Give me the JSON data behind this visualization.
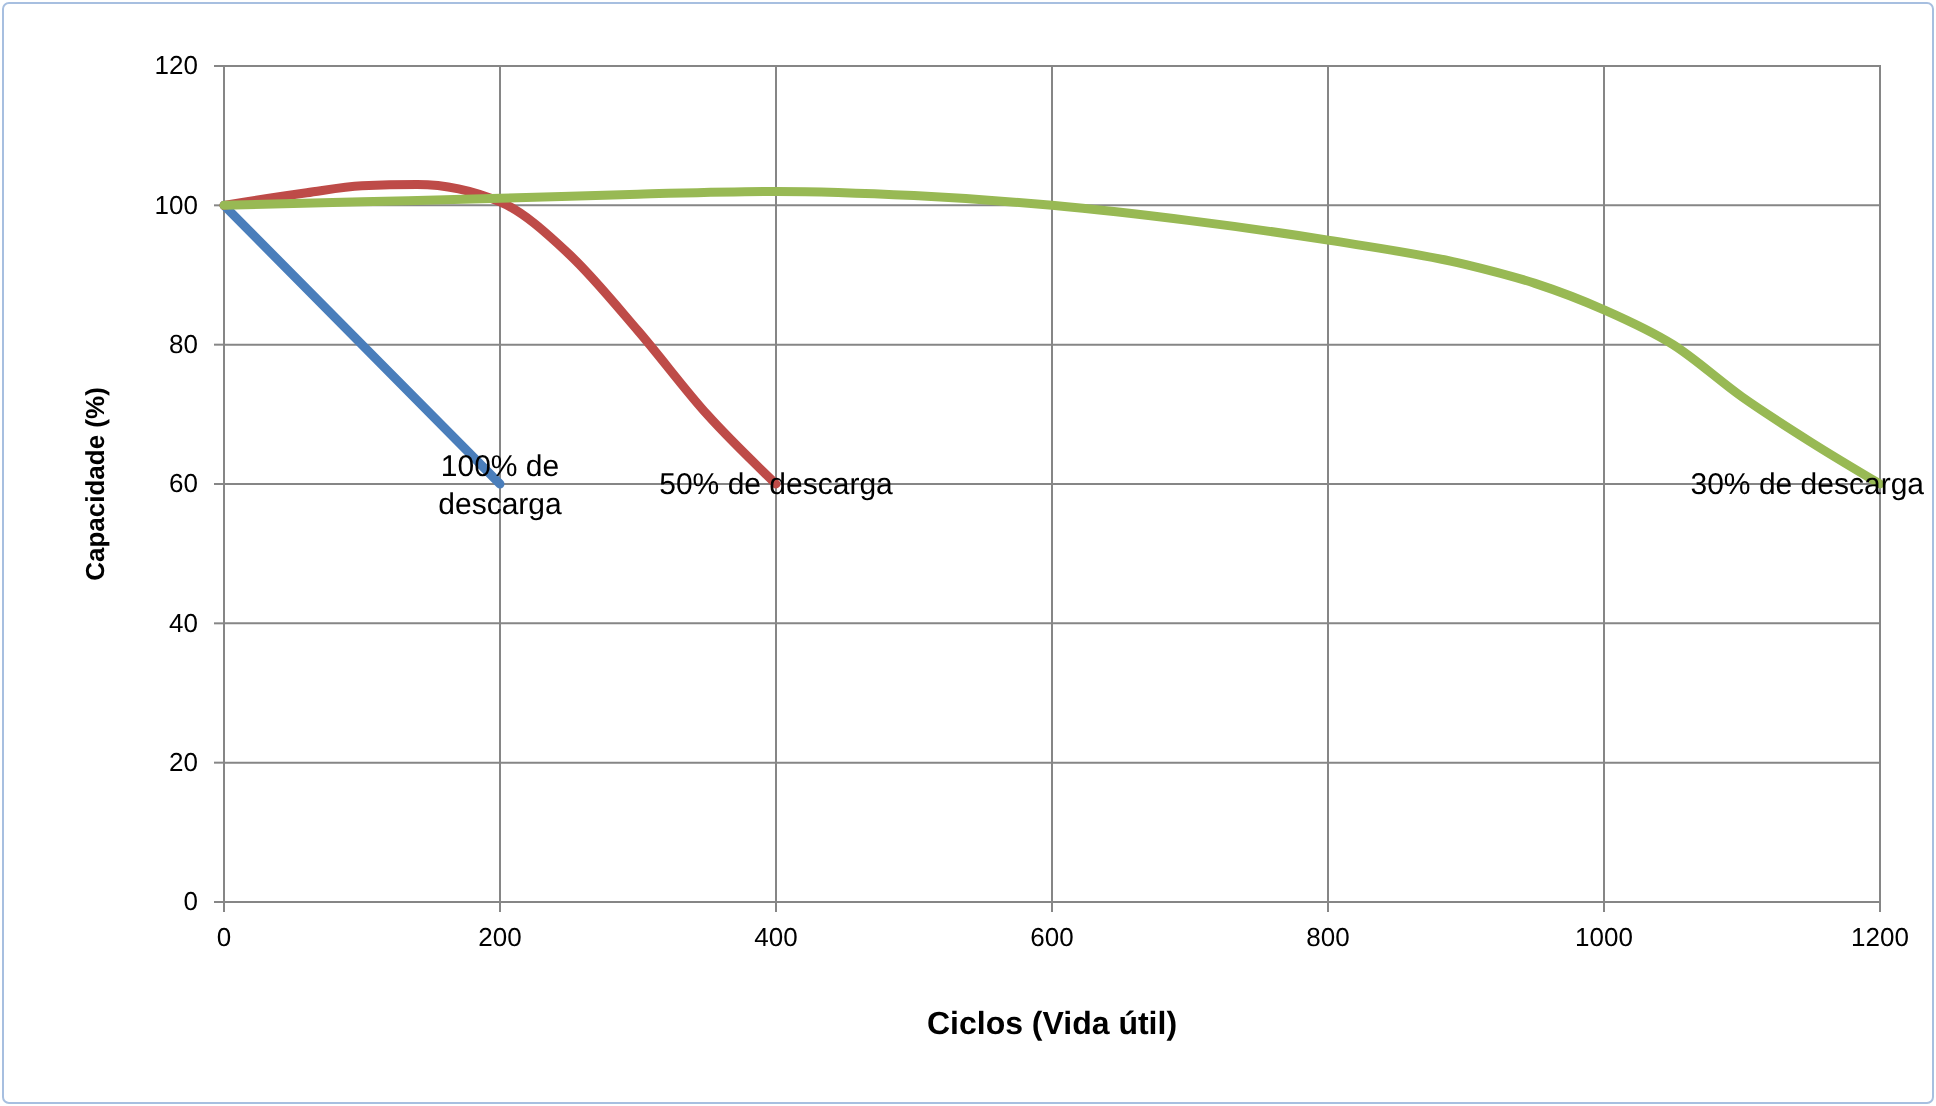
{
  "chart_data": {
    "type": "line",
    "xlabel": "Ciclos (Vida útil)",
    "ylabel": "Capacidade (%)",
    "xlim": [
      0,
      1200
    ],
    "xticks": [
      0,
      200,
      400,
      600,
      800,
      1000,
      1200
    ],
    "ylim": [
      0,
      120
    ],
    "yticks": [
      0,
      20,
      40,
      60,
      80,
      100,
      120
    ],
    "grid": true,
    "marker": "none",
    "line_style": "solid",
    "series": [
      {
        "color": "#4a7ebb",
        "x": [
          0,
          200
        ],
        "values": [
          100,
          60
        ]
      },
      {
        "color": "#be4b48",
        "x": [
          0,
          60,
          100,
          140,
          200,
          250,
          300,
          350,
          400
        ],
        "values": [
          100,
          101.8,
          102.8,
          103,
          100.5,
          93,
          82,
          70,
          60
        ]
      },
      {
        "color": "#98b954",
        "x": [
          0,
          100,
          200,
          300,
          400,
          500,
          600,
          700,
          800,
          900,
          950,
          1000,
          1050,
          1100,
          1150,
          1200
        ],
        "values": [
          100,
          100.5,
          101,
          101.6,
          102,
          101.4,
          100,
          97.8,
          95,
          91.5,
          88.8,
          85,
          80,
          72.5,
          66,
          60
        ]
      }
    ],
    "annotations": [
      {
        "text": "100% de descarga",
        "x": 200,
        "y": 60
      },
      {
        "text": "50% de descarga",
        "x": 400,
        "y": 60
      },
      {
        "text": "30% de descarga",
        "x": 1200,
        "y": 60
      }
    ]
  }
}
